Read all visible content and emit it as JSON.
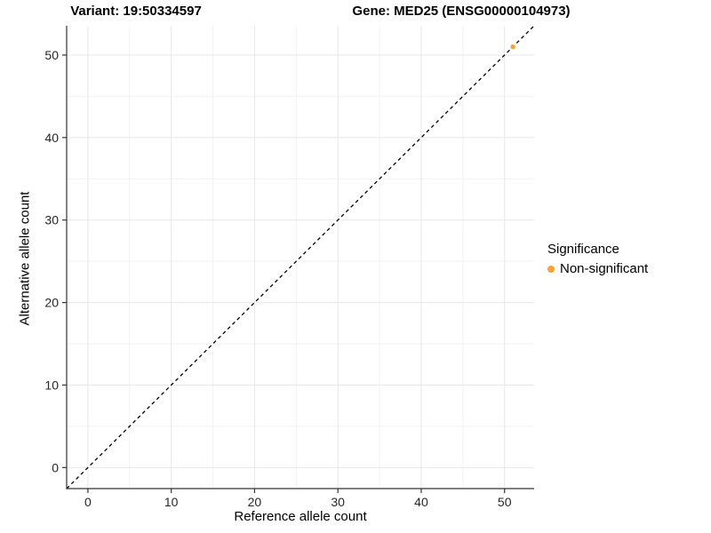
{
  "chart_data": {
    "type": "scatter",
    "title_left": "Variant: 19:50334597",
    "title_right": "Gene: MED25 (ENSG00000104973)",
    "xlabel": "Reference allele count",
    "ylabel": "Alternative allele count",
    "xlim": [
      -2.55,
      53.55
    ],
    "ylim": [
      -2.55,
      53.55
    ],
    "xticks": [
      0,
      10,
      20,
      30,
      40,
      50
    ],
    "yticks": [
      0,
      10,
      20,
      30,
      40,
      50
    ],
    "xminor": [
      5,
      15,
      25,
      35,
      45
    ],
    "yminor": [
      5,
      15,
      25,
      35,
      45
    ],
    "grid": "major+minor",
    "identity_line": {
      "style": "dashed",
      "color": "#000000",
      "from": [
        -2.55,
        -2.55
      ],
      "to": [
        53.55,
        53.55
      ]
    },
    "series": [
      {
        "name": "Non-significant",
        "color": "#F9A22E",
        "points": [
          {
            "x": 51,
            "y": 51
          }
        ]
      }
    ],
    "legend": {
      "title": "Significance",
      "position": "right",
      "entries": [
        {
          "label": "Non-significant",
          "color": "#F9A22E"
        }
      ]
    },
    "colors": {
      "background": "#FFFFFF",
      "grid_major": "#E7E7E7",
      "grid_minor": "#F2F2F2",
      "axis": "#333333",
      "tick_label": "#262626",
      "text": "#000000"
    }
  }
}
